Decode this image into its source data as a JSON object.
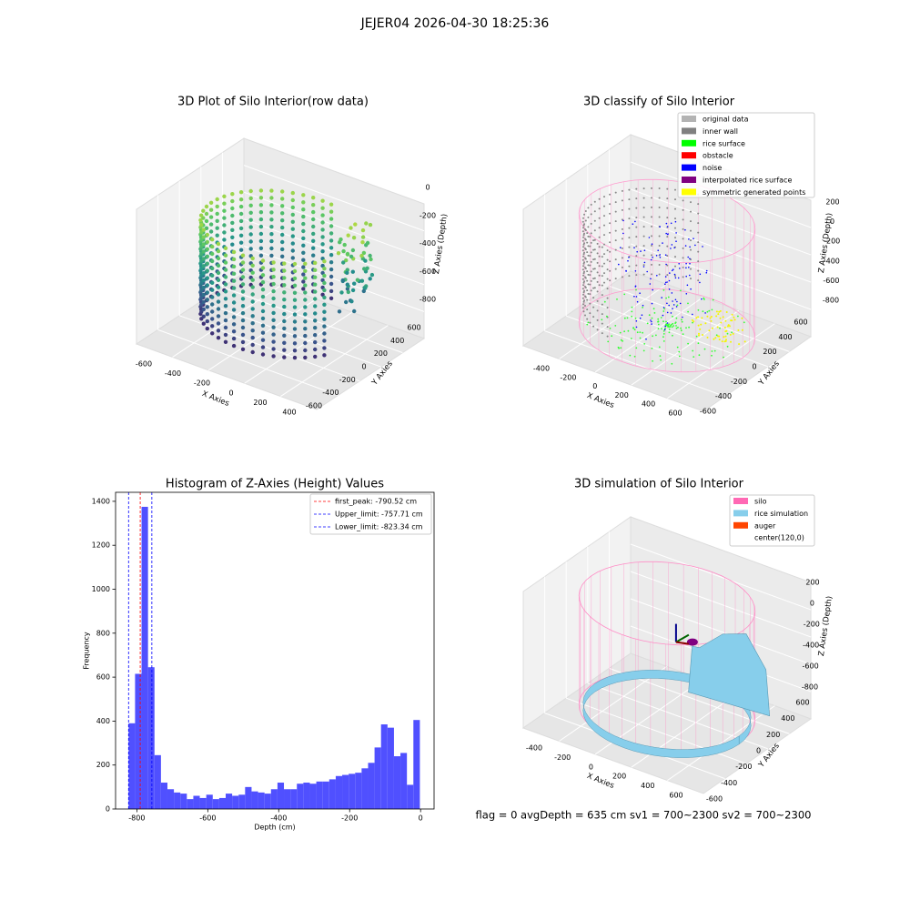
{
  "suptitle": "JEJER04 2026-04-30 18:25:36",
  "footer": "flag = 0     avgDepth = 635 cm  sv1 = 700~2300  sv2 = 700~2300",
  "chart_data": [
    {
      "type": "scatter3d",
      "title": "3D Plot of Silo Interior(row data)",
      "xlabel": "X Axies",
      "ylabel": "Y Axies",
      "zlabel": "Z Axies (Depth)",
      "xticks": [
        -600,
        -400,
        -200,
        0,
        200,
        400
      ],
      "yticks": [
        -600,
        -400,
        -200,
        0,
        200,
        400,
        600
      ],
      "zticks": [
        -800,
        -600,
        -400,
        -200,
        0
      ]
    },
    {
      "type": "classify3d",
      "title": "3D classify of Silo Interior",
      "xlabel": "X Axies",
      "ylabel": "Y Axies",
      "zlabel": "Z Axies (Depth)",
      "xticks": [
        -400,
        -200,
        0,
        200,
        400,
        600
      ],
      "yticks": [
        -600,
        -400,
        -200,
        0,
        200,
        400,
        600
      ],
      "zticks": [
        -800,
        -600,
        -400,
        -200,
        0,
        200
      ],
      "legend": [
        {
          "name": "original data",
          "color": "#b3b3b3"
        },
        {
          "name": "inner wall",
          "color": "#808080"
        },
        {
          "name": "rice surface",
          "color": "#00ff00"
        },
        {
          "name": "obstacle",
          "color": "#ff0000"
        },
        {
          "name": "noise",
          "color": "#0000ff"
        },
        {
          "name": "interpolated rice surface",
          "color": "#800080"
        },
        {
          "name": "symmetric generated points",
          "color": "#ffff00"
        }
      ]
    },
    {
      "type": "histogram",
      "title": "Histogram of Z-Axies (Height) Values",
      "xlabel": "Depth (cm)",
      "ylabel": "Frequency",
      "color": "#5050ff",
      "bins": [
        -823.3,
        -805.05,
        -786.8,
        -768.55,
        -750.3,
        -732.05,
        -713.8,
        -695.55,
        -677.3,
        -659.05,
        -640.8,
        -622.55,
        -604.3,
        -586.05,
        -567.8,
        -549.55,
        -531.3,
        -513.05,
        -494.8,
        -476.55,
        -458.3,
        -440.05,
        -421.8,
        -403.55,
        -385.3,
        -367.05,
        -348.8,
        -330.55,
        -312.3,
        -294.05,
        -275.8,
        -257.55,
        -239.3,
        -221.05,
        -202.8,
        -184.55,
        -166.3,
        -148.05,
        -129.8,
        -111.55,
        -93.3,
        -75.05,
        -56.8,
        -38.55,
        -20.3,
        -2.05
      ],
      "counts": [
        390,
        615,
        1375,
        645,
        245,
        120,
        90,
        75,
        70,
        45,
        60,
        50,
        65,
        45,
        50,
        70,
        60,
        65,
        100,
        80,
        75,
        70,
        90,
        120,
        90,
        90,
        115,
        120,
        115,
        125,
        125,
        135,
        150,
        155,
        160,
        165,
        185,
        210,
        280,
        385,
        370,
        240,
        255,
        110,
        405
      ],
      "xlim": [
        -860,
        38
      ],
      "ylim": [
        0,
        1441
      ],
      "xticks": [
        -800,
        -600,
        -400,
        -200,
        0
      ],
      "yticks": [
        0,
        200,
        400,
        600,
        800,
        1000,
        1200,
        1400
      ],
      "lines": [
        {
          "name": "first_peak: -790.52 cm",
          "value": -790.52,
          "color": "#ff0000"
        },
        {
          "name": "Upper_limit: -757.71 cm",
          "value": -757.71,
          "color": "#0000ff"
        },
        {
          "name": "Lower_limit: -823.34 cm",
          "value": -823.34,
          "color": "#0000ff"
        }
      ]
    },
    {
      "type": "surface3d",
      "title": "3D simulation of Silo Interior",
      "xlabel": "X Axies",
      "ylabel": "Y Axies",
      "zlabel": "Z Axies (Depth)",
      "xticks": [
        -400,
        -200,
        0,
        200,
        400,
        600
      ],
      "yticks": [
        -600,
        -400,
        -200,
        0,
        200,
        400,
        600
      ],
      "zticks": [
        -800,
        -600,
        -400,
        -200,
        0,
        200
      ],
      "legend": [
        {
          "name": "silo",
          "color": "#ff69b4"
        },
        {
          "name": "rice simulation",
          "color": "#87ceeb"
        },
        {
          "name": "auger",
          "color": "#ff4500"
        },
        {
          "name": "center(120,0)",
          "color": "#ffffff"
        }
      ]
    }
  ]
}
